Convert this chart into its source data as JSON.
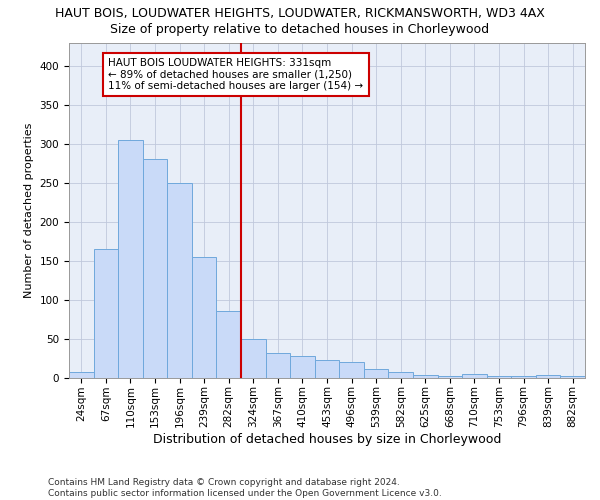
{
  "title": "HAUT BOIS, LOUDWATER HEIGHTS, LOUDWATER, RICKMANSWORTH, WD3 4AX",
  "subtitle": "Size of property relative to detached houses in Chorleywood",
  "xlabel": "Distribution of detached houses by size in Chorleywood",
  "ylabel": "Number of detached properties",
  "categories": [
    "24sqm",
    "67sqm",
    "110sqm",
    "153sqm",
    "196sqm",
    "239sqm",
    "282sqm",
    "324sqm",
    "367sqm",
    "410sqm",
    "453sqm",
    "496sqm",
    "539sqm",
    "582sqm",
    "625sqm",
    "668sqm",
    "710sqm",
    "753sqm",
    "796sqm",
    "839sqm",
    "882sqm"
  ],
  "values": [
    7,
    165,
    305,
    280,
    250,
    155,
    85,
    50,
    32,
    28,
    22,
    20,
    11,
    7,
    3,
    2,
    4,
    2,
    2,
    3,
    2
  ],
  "bar_color": "#c9daf8",
  "bar_edge_color": "#6fa8dc",
  "vline_color": "#cc0000",
  "vline_x_index": 7,
  "annotation_text": "HAUT BOIS LOUDWATER HEIGHTS: 331sqm\n← 89% of detached houses are smaller (1,250)\n11% of semi-detached houses are larger (154) →",
  "annotation_box_color": "#ffffff",
  "annotation_box_edge": "#cc0000",
  "ylim": [
    0,
    430
  ],
  "yticks": [
    0,
    50,
    100,
    150,
    200,
    250,
    300,
    350,
    400
  ],
  "footer": "Contains HM Land Registry data © Crown copyright and database right 2024.\nContains public sector information licensed under the Open Government Licence v3.0.",
  "title_fontsize": 9,
  "subtitle_fontsize": 9,
  "xlabel_fontsize": 9,
  "ylabel_fontsize": 8,
  "tick_fontsize": 7.5,
  "annotation_fontsize": 7.5,
  "footer_fontsize": 6.5,
  "grid_color": "#c0c8dc",
  "bg_color": "#e8eef8"
}
